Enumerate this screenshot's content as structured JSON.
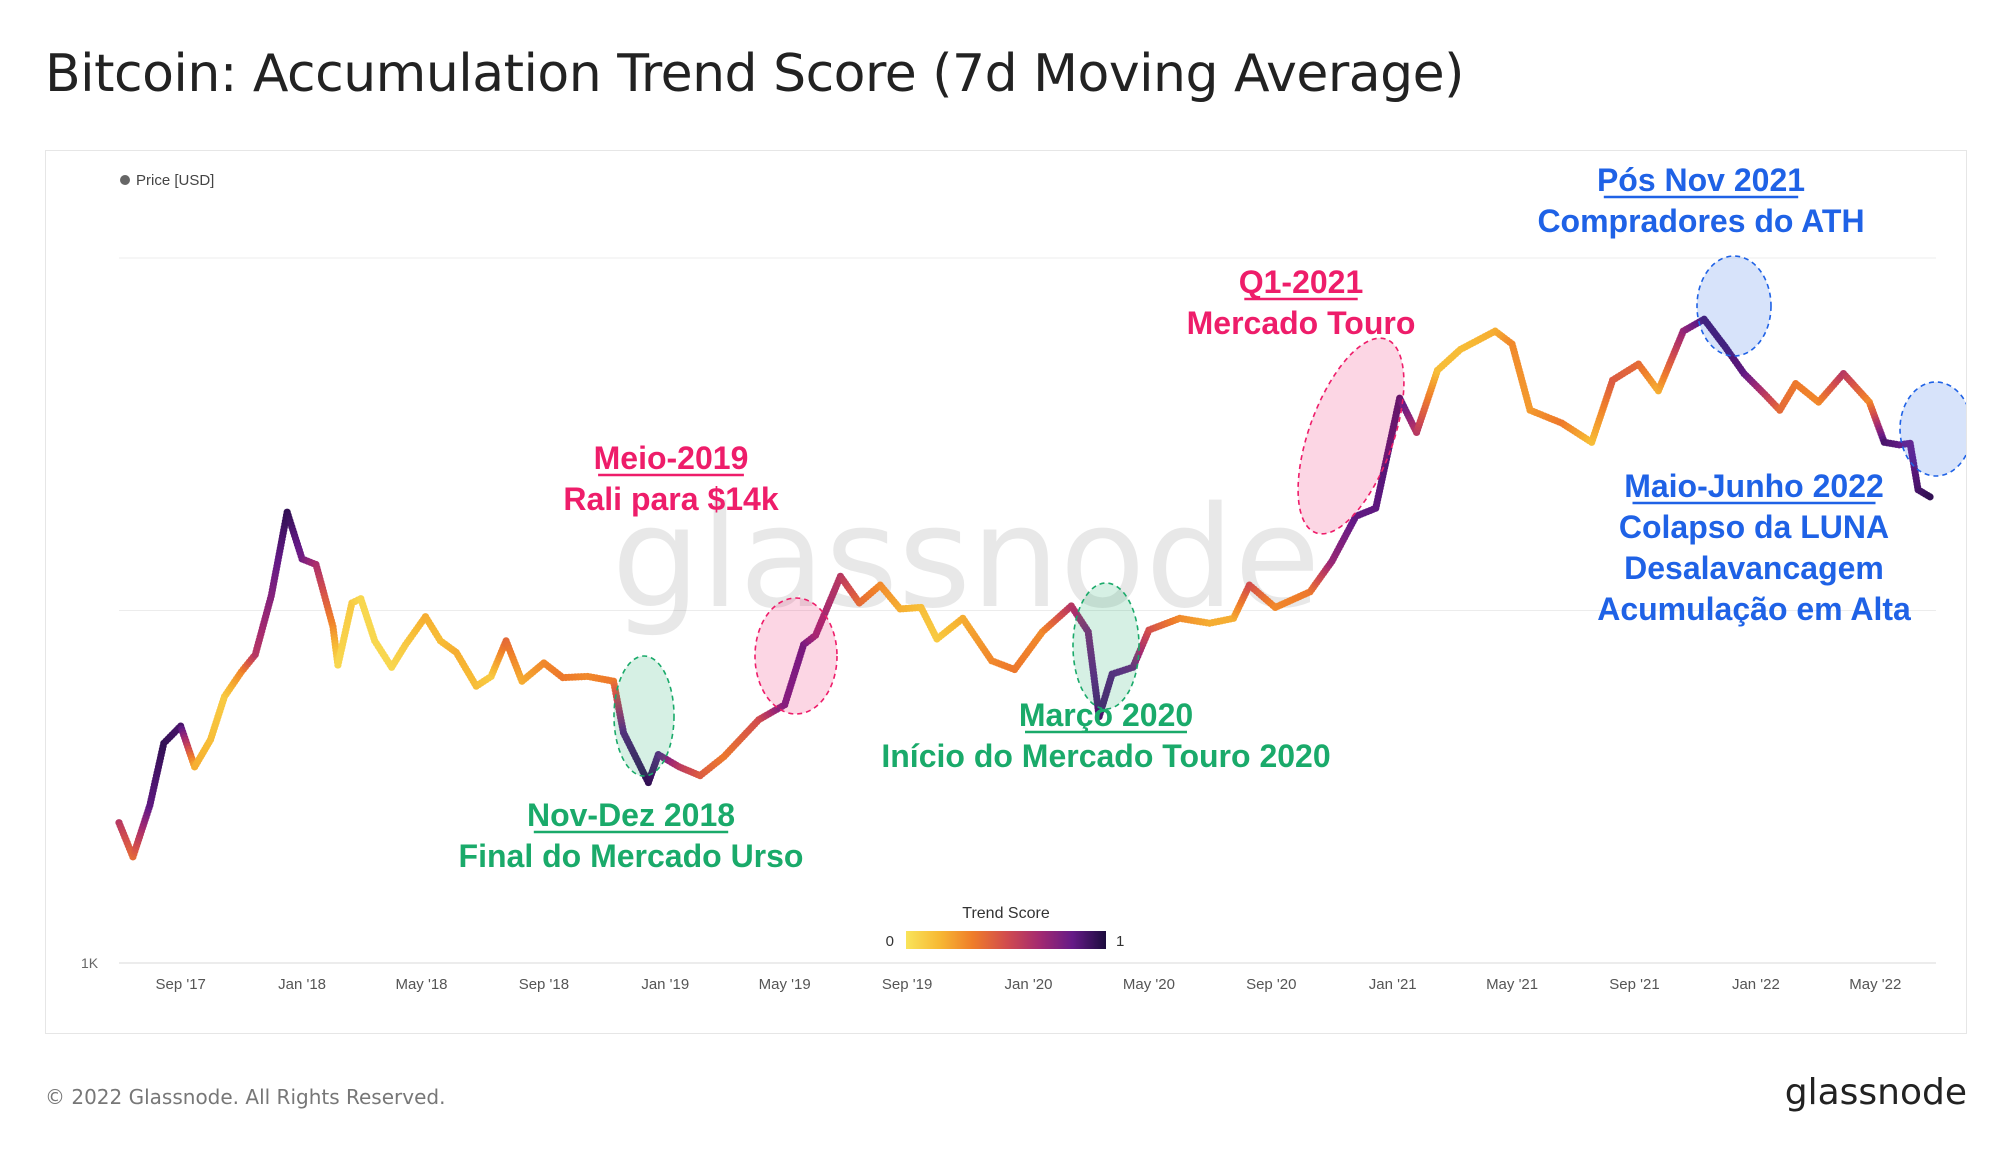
{
  "page": {
    "title": "Bitcoin: Accumulation Trend Score (7d Moving Average)",
    "footer": "© 2022 Glassnode. All Rights Reserved.",
    "brand": "glassnode",
    "watermark": "glassnode"
  },
  "chart_data": {
    "type": "scatter",
    "title": "Bitcoin: Accumulation Trend Score (7d Moving Average)",
    "legend": {
      "series": "Price [USD]",
      "placement": "top-left"
    },
    "colorbar": {
      "title": "Trend Score",
      "min_label": "0",
      "max_label": "1",
      "stops": [
        "#f9e45a",
        "#f7b934",
        "#ef7d2a",
        "#d24d4d",
        "#a42a70",
        "#651a87",
        "#1c0c3e"
      ]
    },
    "y_axis": {
      "scale": "log",
      "tick_labels": [
        "1K"
      ]
    },
    "x_axis": {
      "tick_labels": [
        "Sep '17",
        "Jan '18",
        "May '18",
        "Sep '18",
        "Jan '19",
        "May '19",
        "Sep '19",
        "Jan '20",
        "May '20",
        "Sep '20",
        "Jan '21",
        "May '21",
        "Sep '21",
        "Jan '22",
        "May '22"
      ]
    },
    "series": [
      {
        "name": "Price [USD]",
        "points": [
          [
            "2017-07-01",
            2500,
            0.6
          ],
          [
            "2017-07-15",
            2000,
            0.4
          ],
          [
            "2017-08-01",
            2800,
            0.85
          ],
          [
            "2017-08-15",
            4200,
            0.95
          ],
          [
            "2017-09-01",
            4700,
            0.9
          ],
          [
            "2017-09-15",
            3600,
            0.2
          ],
          [
            "2017-10-01",
            4300,
            0.15
          ],
          [
            "2017-10-15",
            5700,
            0.1
          ],
          [
            "2017-11-01",
            6700,
            0.3
          ],
          [
            "2017-11-15",
            7500,
            0.6
          ],
          [
            "2017-12-01",
            11000,
            0.75
          ],
          [
            "2017-12-17",
            19000,
            0.95
          ],
          [
            "2018-01-01",
            14000,
            0.8
          ],
          [
            "2018-01-15",
            13500,
            0.65
          ],
          [
            "2018-02-01",
            9000,
            0.3
          ],
          [
            "2018-02-06",
            7000,
            0.05
          ],
          [
            "2018-02-20",
            10500,
            0.1
          ],
          [
            "2018-03-01",
            10800,
            0.05
          ],
          [
            "2018-03-15",
            8200,
            0.05
          ],
          [
            "2018-04-01",
            6900,
            0.05
          ],
          [
            "2018-04-15",
            8000,
            0.1
          ],
          [
            "2018-05-05",
            9600,
            0.2
          ],
          [
            "2018-05-20",
            8200,
            0.15
          ],
          [
            "2018-06-05",
            7600,
            0.2
          ],
          [
            "2018-06-25",
            6100,
            0.15
          ],
          [
            "2018-07-10",
            6500,
            0.1
          ],
          [
            "2018-07-25",
            8200,
            0.4
          ],
          [
            "2018-08-10",
            6300,
            0.2
          ],
          [
            "2018-09-01",
            7100,
            0.3
          ],
          [
            "2018-09-20",
            6450,
            0.35
          ],
          [
            "2018-10-15",
            6500,
            0.3
          ],
          [
            "2018-11-10",
            6300,
            0.35
          ],
          [
            "2018-11-20",
            4500,
            0.85
          ],
          [
            "2018-12-01",
            3900,
            0.9
          ],
          [
            "2018-12-15",
            3250,
            0.95
          ],
          [
            "2018-12-25",
            3900,
            0.85
          ],
          [
            "2019-01-15",
            3600,
            0.6
          ],
          [
            "2019-02-05",
            3400,
            0.45
          ],
          [
            "2019-03-01",
            3850,
            0.35
          ],
          [
            "2019-04-05",
            4900,
            0.5
          ],
          [
            "2019-05-01",
            5400,
            0.8
          ],
          [
            "2019-05-20",
            8000,
            0.85
          ],
          [
            "2019-06-01",
            8500,
            0.7
          ],
          [
            "2019-06-26",
            12500,
            0.6
          ],
          [
            "2019-07-15",
            10500,
            0.4
          ],
          [
            "2019-08-05",
            11800,
            0.3
          ],
          [
            "2019-08-25",
            10100,
            0.2
          ],
          [
            "2019-09-15",
            10200,
            0.15
          ],
          [
            "2019-10-01",
            8300,
            0.1
          ],
          [
            "2019-10-27",
            9500,
            0.2
          ],
          [
            "2019-11-25",
            7200,
            0.3
          ],
          [
            "2019-12-18",
            6800,
            0.35
          ],
          [
            "2020-01-15",
            8700,
            0.3
          ],
          [
            "2020-02-13",
            10300,
            0.6
          ],
          [
            "2020-03-01",
            8700,
            0.75
          ],
          [
            "2020-03-12",
            5000,
            0.9
          ],
          [
            "2020-03-25",
            6600,
            0.85
          ],
          [
            "2020-04-15",
            6900,
            0.8
          ],
          [
            "2020-05-01",
            8800,
            0.5
          ],
          [
            "2020-06-01",
            9500,
            0.3
          ],
          [
            "2020-07-01",
            9200,
            0.2
          ],
          [
            "2020-07-25",
            9500,
            0.2
          ],
          [
            "2020-08-10",
            11800,
            0.5
          ],
          [
            "2020-09-05",
            10200,
            0.3
          ],
          [
            "2020-10-10",
            11300,
            0.35
          ],
          [
            "2020-11-01",
            13800,
            0.7
          ],
          [
            "2020-11-25",
            18500,
            0.85
          ],
          [
            "2020-12-15",
            19500,
            0.85
          ],
          [
            "2021-01-08",
            40000,
            0.9
          ],
          [
            "2021-01-25",
            32000,
            0.6
          ],
          [
            "2021-02-15",
            48000,
            0.15
          ],
          [
            "2021-03-10",
            55000,
            0.15
          ],
          [
            "2021-04-14",
            62000,
            0.2
          ],
          [
            "2021-05-01",
            57000,
            0.3
          ],
          [
            "2021-05-19",
            37000,
            0.25
          ],
          [
            "2021-06-20",
            34000,
            0.35
          ],
          [
            "2021-07-20",
            30000,
            0.15
          ],
          [
            "2021-08-10",
            45000,
            0.45
          ],
          [
            "2021-09-05",
            50000,
            0.4
          ],
          [
            "2021-09-25",
            42000,
            0.2
          ],
          [
            "2021-10-20",
            62000,
            0.7
          ],
          [
            "2021-11-10",
            67000,
            0.9
          ],
          [
            "2021-12-01",
            56000,
            0.9
          ],
          [
            "2021-12-20",
            47000,
            0.85
          ],
          [
            "2022-01-10",
            41000,
            0.6
          ],
          [
            "2022-01-25",
            37000,
            0.4
          ],
          [
            "2022-02-10",
            44000,
            0.35
          ],
          [
            "2022-03-05",
            39000,
            0.3
          ],
          [
            "2022-03-30",
            47000,
            0.6
          ],
          [
            "2022-04-25",
            39000,
            0.3
          ],
          [
            "2022-05-10",
            30000,
            0.9
          ],
          [
            "2022-05-25",
            29500,
            0.85
          ],
          [
            "2022-06-05",
            29800,
            0.8
          ],
          [
            "2022-06-13",
            22000,
            0.9
          ],
          [
            "2022-06-25",
            21000,
            0.95
          ]
        ]
      }
    ],
    "annotations": [
      {
        "lines": [
          "Nov-Dez 2018",
          "Final do Mercado Urso"
        ],
        "color": "#1aaa6a"
      },
      {
        "lines": [
          "Meio-2019",
          "Rali para $14k"
        ],
        "color": "#ee1d6a"
      },
      {
        "lines": [
          "Março 2020",
          "Início do Mercado Touro 2020"
        ],
        "color": "#1aaa6a"
      },
      {
        "lines": [
          "Q1-2021",
          "Mercado Touro"
        ],
        "color": "#ee1d6a"
      },
      {
        "lines": [
          "Pós Nov 2021",
          "Compradores do ATH"
        ],
        "color": "#1f62e6"
      },
      {
        "lines": [
          "Maio-Junho 2022",
          "Colapso da LUNA",
          "Desalavancagem",
          "Acumulação em Alta"
        ],
        "color": "#1f62e6"
      }
    ],
    "grid": true
  }
}
